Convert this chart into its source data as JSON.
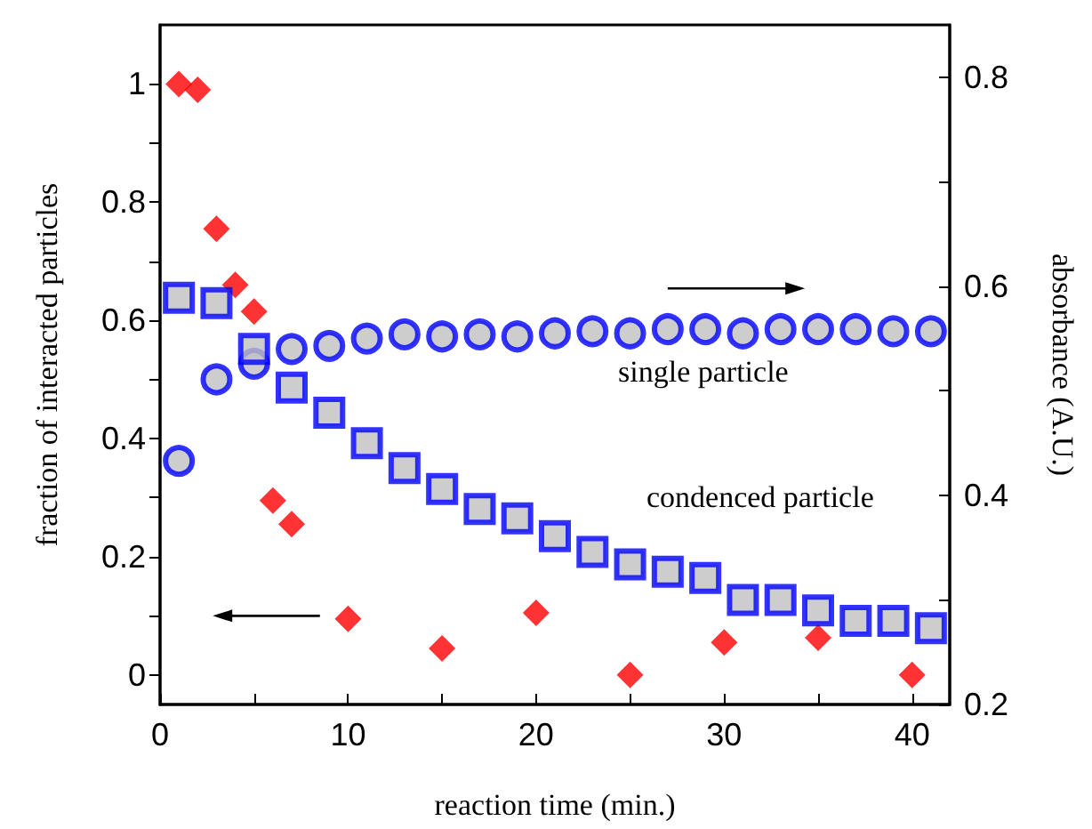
{
  "chart_data": {
    "type": "scatter",
    "xlabel": "reaction time (min.)",
    "ylabel": "fraction of interacted particles",
    "y2label": "absorbance (A.U.)",
    "xlim": [
      0,
      42
    ],
    "xticks": [
      0,
      {
        "value": 5,
        "label": null
      },
      10,
      {
        "value": 15,
        "label": null
      },
      20,
      {
        "value": 25,
        "label": null
      },
      30,
      {
        "value": 35,
        "label": null
      },
      40
    ],
    "ylim": [
      -0.05,
      1.1
    ],
    "yticks": [
      0,
      {
        "value": 0.1,
        "label": null
      },
      0.2,
      {
        "value": 0.3,
        "label": null
      },
      0.4,
      {
        "value": 0.5,
        "label": null
      },
      0.6,
      {
        "value": 0.7,
        "label": null
      },
      0.8,
      {
        "value": 0.9,
        "label": null
      },
      1
    ],
    "y2lim": [
      0.2,
      0.85
    ],
    "y2ticks": [
      0.2,
      {
        "value": 0.3,
        "label": null
      },
      0.4,
      {
        "value": 0.5,
        "label": null
      },
      0.6,
      {
        "value": 0.7,
        "label": null
      },
      0.8
    ],
    "grid": false,
    "legend": false,
    "series": [
      {
        "color": "#ff0000",
        "marker": "diamond",
        "x": [
          1,
          2,
          3,
          4,
          5,
          6,
          7,
          10,
          15,
          20,
          25,
          30,
          35,
          40
        ],
        "values": [
          1.0,
          0.99,
          0.755,
          0.66,
          0.615,
          0.295,
          0.255,
          0.095,
          0.045,
          0.105,
          0,
          0.055,
          0.063,
          0
        ]
      },
      {
        "name": "single particle",
        "color": "#0000ff",
        "marker": "circle",
        "axis": "y2",
        "x": [
          1,
          3,
          5,
          7,
          9,
          11,
          13,
          15,
          17,
          19,
          21,
          23,
          25,
          27,
          29,
          31,
          33,
          35,
          37,
          39,
          41
        ],
        "values": [
          0.433,
          0.511,
          0.526,
          0.54,
          0.543,
          0.55,
          0.554,
          0.552,
          0.554,
          0.552,
          0.555,
          0.557,
          0.555,
          0.559,
          0.559,
          0.555,
          0.559,
          0.559,
          0.559,
          0.557,
          0.557
        ]
      },
      {
        "name": "condenced particle",
        "color": "#0000ff",
        "marker": "square",
        "axis": "y2",
        "x": [
          1,
          3,
          5,
          7,
          9,
          11,
          13,
          15,
          17,
          19,
          21,
          23,
          25,
          27,
          29,
          31,
          33,
          35,
          37,
          39,
          41
        ],
        "values": [
          0.589,
          0.584,
          0.54,
          0.503,
          0.479,
          0.45,
          0.426,
          0.406,
          0.387,
          0.378,
          0.361,
          0.346,
          0.334,
          0.327,
          0.321,
          0.3,
          0.3,
          0.29,
          0.28,
          0.28,
          0.273
        ]
      }
    ]
  }
}
